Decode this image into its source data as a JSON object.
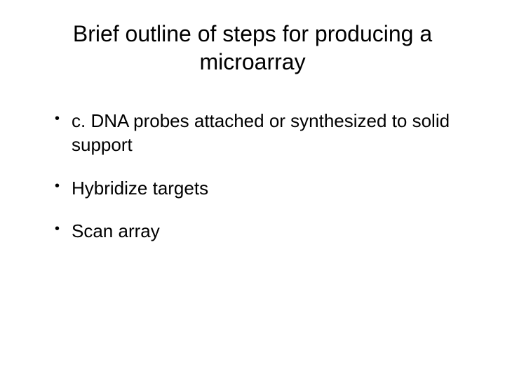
{
  "slide": {
    "title": "Brief outline of steps for producing a microarray",
    "title_fontsize": 32,
    "title_color": "#000000",
    "bullets": [
      {
        "text": "c. DNA probes attached or synthesized to solid support"
      },
      {
        "text": "Hybridize targets"
      },
      {
        "text": "Scan array"
      }
    ],
    "bullet_fontsize": 26,
    "bullet_color": "#000000",
    "background_color": "#ffffff",
    "font_family": "Comic Sans MS"
  }
}
